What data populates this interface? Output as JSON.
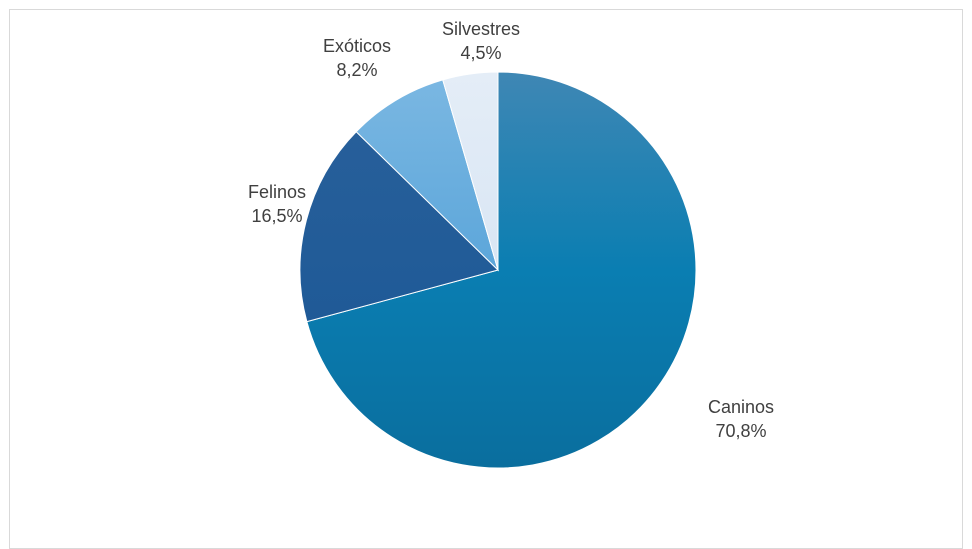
{
  "chart_data": {
    "type": "pie",
    "title": "",
    "start_angle_deg": 0,
    "direction": "clockwise",
    "slices": [
      {
        "label": "Caninos",
        "value": 70.8,
        "value_label": "70,8%",
        "color": "#0f7fb0"
      },
      {
        "label": "Felinos",
        "value": 16.5,
        "value_label": "16,5%",
        "color": "#225e99"
      },
      {
        "label": "Exóticos",
        "value": 8.2,
        "value_label": "8,2%",
        "color": "#6aaedd"
      },
      {
        "label": "Silvestres",
        "value": 4.5,
        "value_label": "4,5%",
        "color": "#dde8f5"
      }
    ]
  }
}
